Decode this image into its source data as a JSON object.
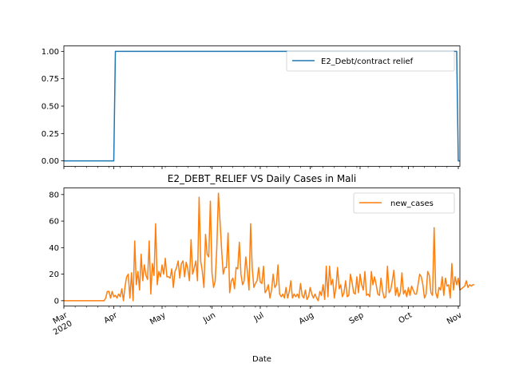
{
  "chart_data": [
    {
      "type": "line",
      "title": "",
      "xlabel": "",
      "ylabel": "",
      "xlim": [
        "2020-03-01",
        "2020-11-02"
      ],
      "ylim": [
        -0.05,
        1.05
      ],
      "y_ticks": [
        "0.00",
        "0.25",
        "0.50",
        "0.75",
        "1.00"
      ],
      "legend": "top-right",
      "series": [
        {
          "name": "E2_Debt/contract relief",
          "color": "#1f77b4",
          "points": [
            [
              "2020-03-01",
              0
            ],
            [
              "2020-04-01",
              0
            ],
            [
              "2020-04-02",
              1
            ],
            [
              "2020-10-31",
              1
            ],
            [
              "2020-11-01",
              0
            ],
            [
              "2020-11-02",
              0
            ]
          ]
        }
      ]
    },
    {
      "type": "line",
      "title": "E2_DEBT_RELIEF VS Daily Cases in Mali",
      "xlabel": "Date",
      "ylabel": "",
      "xlim": [
        "2020-03-01",
        "2020-11-02"
      ],
      "ylim": [
        -4,
        85
      ],
      "y_ticks": [
        "0",
        "20",
        "40",
        "60",
        "80"
      ],
      "x_ticks": [
        "Mar\n2020",
        "Apr",
        "May",
        "Jun",
        "Jul",
        "Aug",
        "Sep",
        "Oct",
        "Nov"
      ],
      "legend": "top-right",
      "series": [
        {
          "name": "new_cases",
          "color": "#ff7f0e",
          "start_date": "2020-03-01",
          "values": [
            0,
            0,
            0,
            0,
            0,
            0,
            0,
            0,
            0,
            0,
            0,
            0,
            0,
            0,
            0,
            0,
            0,
            0,
            0,
            0,
            0,
            0,
            0,
            0,
            0,
            0,
            2,
            7,
            7,
            2,
            7,
            3,
            4,
            2,
            5,
            3,
            9,
            0,
            11,
            18,
            20,
            2,
            21,
            0,
            45,
            12,
            22,
            8,
            35,
            15,
            27,
            19,
            16,
            45,
            5,
            28,
            19,
            58,
            12,
            22,
            18,
            27,
            20,
            32,
            18,
            18,
            17,
            24,
            10,
            22,
            25,
            30,
            17,
            28,
            30,
            18,
            29,
            24,
            15,
            46,
            20,
            25,
            30,
            15,
            78,
            30,
            22,
            10,
            50,
            35,
            33,
            75,
            21,
            10,
            15,
            40,
            81,
            60,
            38,
            20,
            25,
            25,
            51,
            6,
            15,
            17,
            9,
            25,
            24,
            44,
            20,
            12,
            15,
            33,
            22,
            8,
            58,
            25,
            10,
            13,
            15,
            25,
            14,
            13,
            26,
            6,
            8,
            12,
            2,
            8,
            20,
            10,
            12,
            27,
            5,
            3,
            5,
            2,
            10,
            2,
            7,
            15,
            2,
            5,
            3,
            5,
            2,
            13,
            4,
            2,
            8,
            1,
            3,
            10,
            5,
            2,
            5,
            2,
            0,
            7,
            4,
            12,
            1,
            26,
            3,
            26,
            12,
            16,
            2,
            10,
            25,
            9,
            12,
            3,
            6,
            15,
            3,
            4,
            20,
            14,
            6,
            5,
            18,
            6,
            20,
            12,
            8,
            22,
            4,
            5,
            3,
            22,
            12,
            18,
            12,
            5,
            4,
            17,
            7,
            2,
            3,
            26,
            6,
            8,
            15,
            23,
            4,
            10,
            3,
            6,
            21,
            5,
            8,
            3,
            10,
            4,
            11,
            8,
            5,
            5,
            12,
            20,
            18,
            12,
            2,
            5,
            22,
            19,
            6,
            4,
            55,
            6,
            2,
            10,
            8,
            18,
            4,
            17,
            11,
            12,
            2,
            28,
            8,
            18,
            12,
            17,
            8,
            9,
            10,
            11,
            15,
            10,
            12,
            11,
            12,
            12
          ]
        }
      ]
    }
  ]
}
